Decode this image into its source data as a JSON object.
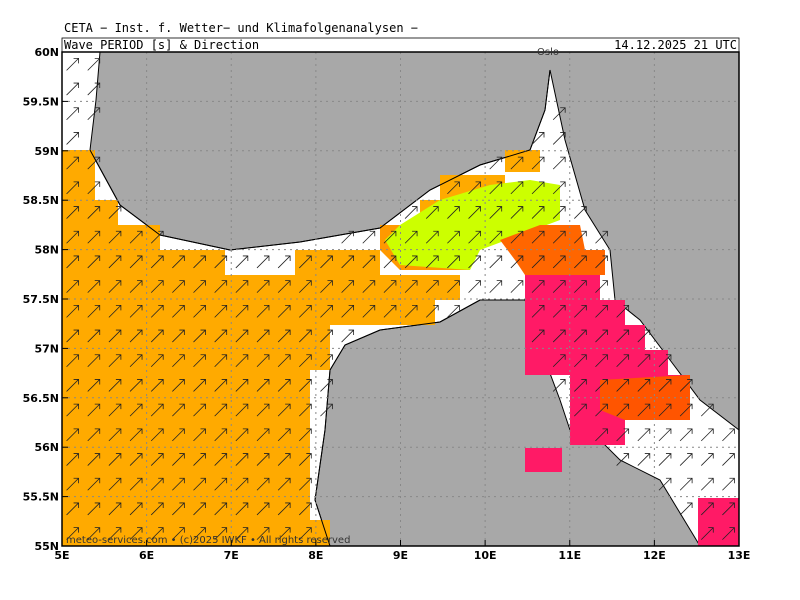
{
  "header": {
    "title": "CETA − Inst. f. Wetter− und Klimafolgenanalysen −",
    "subtitle": "Wave_PERIOD [s] & Direction",
    "valid_time": "14.12.2025 21 UTC"
  },
  "map": {
    "lat_ticks": [
      {
        "value": 60,
        "label": "60N"
      },
      {
        "value": 59.5,
        "label": "59.5N"
      },
      {
        "value": 59,
        "label": "59N"
      },
      {
        "value": 58.5,
        "label": "58.5N"
      },
      {
        "value": 58,
        "label": "58N"
      },
      {
        "value": 57.5,
        "label": "57.5N"
      },
      {
        "value": 57,
        "label": "57N"
      },
      {
        "value": 56.5,
        "label": "56.5N"
      },
      {
        "value": 56,
        "label": "56N"
      },
      {
        "value": 55.5,
        "label": "55.5N"
      },
      {
        "value": 55,
        "label": "55N"
      }
    ],
    "lon_ticks": [
      {
        "value": 5,
        "label": "5E"
      },
      {
        "value": 6,
        "label": "6E"
      },
      {
        "value": 7,
        "label": "7E"
      },
      {
        "value": 8,
        "label": "8E"
      },
      {
        "value": 9,
        "label": "9E"
      },
      {
        "value": 10,
        "label": "10E"
      },
      {
        "value": 11,
        "label": "11E"
      },
      {
        "value": 12,
        "label": "12E"
      },
      {
        "value": 13,
        "label": "13E"
      }
    ],
    "place_label": "Oslo",
    "footer": "meteo-services.com • (c)2025 IWKF • All rights reserved"
  }
}
